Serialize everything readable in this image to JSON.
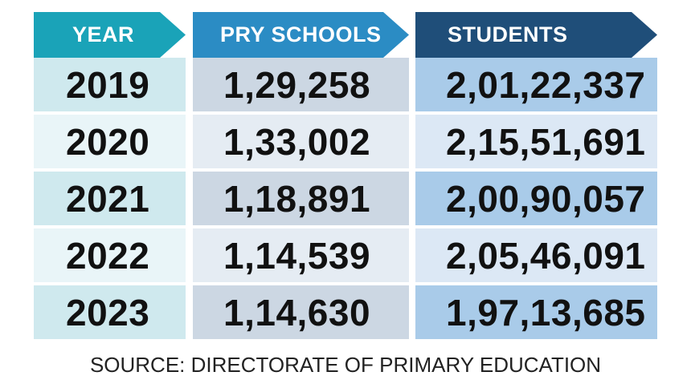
{
  "headers": {
    "year": "YEAR",
    "schools": "PRY SCHOOLS",
    "students": "STUDENTS"
  },
  "source": "SOURCE: DIRECTORATE OF PRIMARY EDUCATION",
  "colors": {
    "year_header": "#1aa3b8",
    "schools_header": "#2b8cc4",
    "students_header": "#1f4e79"
  },
  "chart_data": {
    "type": "table",
    "columns": [
      "YEAR",
      "PRY SCHOOLS",
      "STUDENTS"
    ],
    "rows": [
      [
        "2019",
        "1,29,258",
        "2,01,22,337"
      ],
      [
        "2020",
        "1,33,002",
        "2,15,51,691"
      ],
      [
        "2021",
        "1,18,891",
        "2,00,90,057"
      ],
      [
        "2022",
        "1,14,539",
        "2,05,46,091"
      ],
      [
        "2023",
        "1,14,630",
        "1,97,13,685"
      ]
    ]
  }
}
